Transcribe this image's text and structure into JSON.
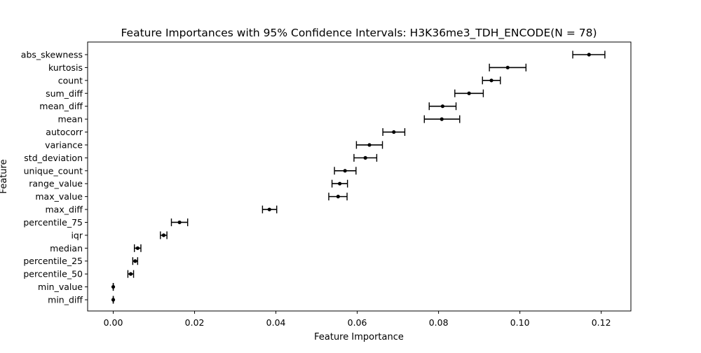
{
  "chart_data": {
    "type": "scatter",
    "title": "Feature Importances with 95% Confidence Intervals: H3K36me3_TDH_ENCODE(N = 78)",
    "xlabel": "Feature Importance",
    "ylabel": "Feature",
    "xlim": [
      -0.0063,
      0.1273
    ],
    "xticks": [
      0.0,
      0.02,
      0.04,
      0.06,
      0.08,
      0.1,
      0.12
    ],
    "xtick_labels": [
      "0.00",
      "0.02",
      "0.04",
      "0.06",
      "0.08",
      "0.10",
      "0.12"
    ],
    "grid": false,
    "marker_color": "#000000",
    "features": [
      {
        "name": "abs_skewness",
        "importance": 0.117,
        "ci_low": 0.113,
        "ci_high": 0.1209
      },
      {
        "name": "kurtosis",
        "importance": 0.097,
        "ci_low": 0.0925,
        "ci_high": 0.1015
      },
      {
        "name": "count",
        "importance": 0.093,
        "ci_low": 0.0908,
        "ci_high": 0.0952
      },
      {
        "name": "sum_diff",
        "importance": 0.0875,
        "ci_low": 0.084,
        "ci_high": 0.091
      },
      {
        "name": "mean_diff",
        "importance": 0.081,
        "ci_low": 0.0777,
        "ci_high": 0.0843
      },
      {
        "name": "mean",
        "importance": 0.0808,
        "ci_low": 0.0765,
        "ci_high": 0.0852
      },
      {
        "name": "autocorr",
        "importance": 0.069,
        "ci_low": 0.0663,
        "ci_high": 0.0717
      },
      {
        "name": "variance",
        "importance": 0.063,
        "ci_low": 0.0598,
        "ci_high": 0.0662
      },
      {
        "name": "std_deviation",
        "importance": 0.062,
        "ci_low": 0.0592,
        "ci_high": 0.0648
      },
      {
        "name": "unique_count",
        "importance": 0.057,
        "ci_low": 0.0544,
        "ci_high": 0.0597
      },
      {
        "name": "range_value",
        "importance": 0.0557,
        "ci_low": 0.0538,
        "ci_high": 0.0576
      },
      {
        "name": "max_value",
        "importance": 0.0553,
        "ci_low": 0.053,
        "ci_high": 0.0575
      },
      {
        "name": "max_diff",
        "importance": 0.0384,
        "ci_low": 0.0367,
        "ci_high": 0.0402
      },
      {
        "name": "percentile_75",
        "importance": 0.0163,
        "ci_low": 0.0143,
        "ci_high": 0.0183
      },
      {
        "name": "iqr",
        "importance": 0.0124,
        "ci_low": 0.0116,
        "ci_high": 0.0132
      },
      {
        "name": "median",
        "importance": 0.006,
        "ci_low": 0.0052,
        "ci_high": 0.0068
      },
      {
        "name": "percentile_25",
        "importance": 0.0054,
        "ci_low": 0.0048,
        "ci_high": 0.006
      },
      {
        "name": "percentile_50",
        "importance": 0.0043,
        "ci_low": 0.0036,
        "ci_high": 0.005
      },
      {
        "name": "min_value",
        "importance": 0.0,
        "ci_low": 0.0,
        "ci_high": 0.0
      },
      {
        "name": "min_diff",
        "importance": 0.0,
        "ci_low": 0.0,
        "ci_high": 0.0
      }
    ]
  }
}
